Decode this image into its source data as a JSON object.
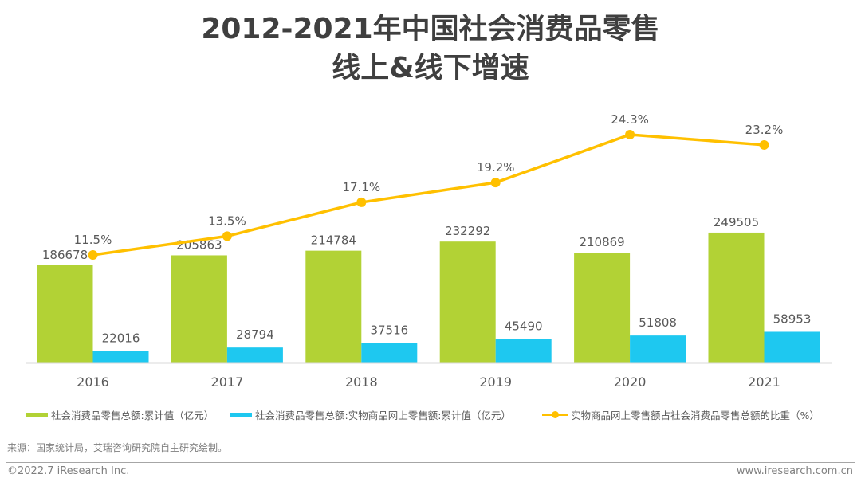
{
  "title_line1": "2012-2021年中国社会消费品零售",
  "title_line2": "线上&线下增速",
  "chart_data": {
    "type": "bar",
    "title": "2012-2021年中国社会消费品零售线上&线下增速",
    "categories": [
      "2016",
      "2017",
      "2018",
      "2019",
      "2020",
      "2021"
    ],
    "series": [
      {
        "name": "社会消费品零售总额:累计值（亿元）",
        "type": "bar",
        "color": "#b2d235",
        "values": [
          186678,
          205863,
          214784,
          232292,
          210869,
          249505
        ]
      },
      {
        "name": "社会消费品零售总额:实物商品网上零售额:累计值（亿元）",
        "type": "bar",
        "color": "#1ec8f0",
        "values": [
          22016,
          28794,
          37516,
          45490,
          51808,
          58953
        ]
      },
      {
        "name": "实物商品网上零售额占社会消费品零售总额的比重（%）",
        "type": "line",
        "color": "#ffc000",
        "values": [
          11.5,
          13.5,
          17.1,
          19.2,
          24.3,
          23.2
        ],
        "labels": [
          "11.5%",
          "13.5%",
          "17.1%",
          "19.2%",
          "24.3%",
          "23.2%"
        ]
      }
    ],
    "xlabel": "",
    "ylabel": "",
    "grid": false,
    "legend": "bottom"
  },
  "legend": [
    {
      "label": "社会消费品零售总额:累计值（亿元）",
      "icon": "green-bar-swatch"
    },
    {
      "label": "社会消费品零售总额:实物商品网上零售额:累计值（亿元）",
      "icon": "blue-bar-swatch"
    },
    {
      "label": "实物商品网上零售额占社会消费品零售总额的比重（%）",
      "icon": "yellow-line-marker"
    }
  ],
  "source": "来源：国家统计局，艾瑞咨询研究院自主研究绘制。",
  "copyright": "©2022.7 iResearch Inc.",
  "website": "www.iresearch.com.cn"
}
